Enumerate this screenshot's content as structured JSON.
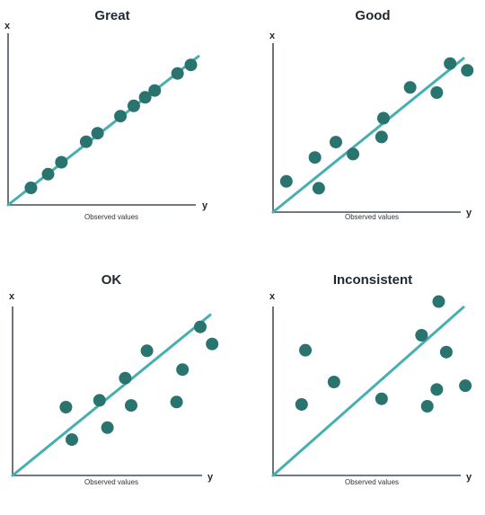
{
  "colors": {
    "point": "#2a7470",
    "fit_line": "#46b0b0",
    "axis": "#1f2933"
  },
  "chart_data": [
    {
      "type": "scatter",
      "title": "Great",
      "xlabel": "Observed values",
      "x_axis_letter": "y",
      "y_axis_letter": "x",
      "xlim": [
        0,
        1
      ],
      "ylim": [
        0,
        1
      ],
      "fit_line": [
        [
          0,
          0
        ],
        [
          1,
          0.87
        ]
      ],
      "grid": false,
      "points": [
        {
          "x": 0.12,
          "y": 0.1
        },
        {
          "x": 0.21,
          "y": 0.18
        },
        {
          "x": 0.28,
          "y": 0.25
        },
        {
          "x": 0.41,
          "y": 0.37
        },
        {
          "x": 0.47,
          "y": 0.42
        },
        {
          "x": 0.59,
          "y": 0.52
        },
        {
          "x": 0.66,
          "y": 0.58
        },
        {
          "x": 0.72,
          "y": 0.63
        },
        {
          "x": 0.77,
          "y": 0.67
        },
        {
          "x": 0.89,
          "y": 0.77
        },
        {
          "x": 0.96,
          "y": 0.82
        }
      ]
    },
    {
      "type": "scatter",
      "title": "Good",
      "xlabel": "Observed values",
      "x_axis_letter": "y",
      "y_axis_letter": "x",
      "xlim": [
        0,
        1
      ],
      "ylim": [
        0,
        1
      ],
      "fit_line": [
        [
          0,
          0
        ],
        [
          1,
          0.9
        ]
      ],
      "grid": false,
      "points": [
        {
          "x": 0.07,
          "y": 0.18
        },
        {
          "x": 0.22,
          "y": 0.32
        },
        {
          "x": 0.24,
          "y": 0.14
        },
        {
          "x": 0.33,
          "y": 0.41
        },
        {
          "x": 0.42,
          "y": 0.34
        },
        {
          "x": 0.57,
          "y": 0.44
        },
        {
          "x": 0.58,
          "y": 0.55
        },
        {
          "x": 0.72,
          "y": 0.73
        },
        {
          "x": 0.86,
          "y": 0.7
        },
        {
          "x": 0.93,
          "y": 0.87
        },
        {
          "x": 1.02,
          "y": 0.83
        }
      ]
    },
    {
      "type": "scatter",
      "title": "OK",
      "xlabel": "Observed values",
      "x_axis_letter": "y",
      "y_axis_letter": "x",
      "xlim": [
        0,
        1
      ],
      "ylim": [
        0,
        1
      ],
      "fit_line": [
        [
          0,
          0
        ],
        [
          1,
          0.94
        ]
      ],
      "grid": false,
      "points": [
        {
          "x": 0.27,
          "y": 0.4
        },
        {
          "x": 0.3,
          "y": 0.21
        },
        {
          "x": 0.44,
          "y": 0.44
        },
        {
          "x": 0.48,
          "y": 0.28
        },
        {
          "x": 0.57,
          "y": 0.57
        },
        {
          "x": 0.6,
          "y": 0.41
        },
        {
          "x": 0.68,
          "y": 0.73
        },
        {
          "x": 0.83,
          "y": 0.43
        },
        {
          "x": 0.86,
          "y": 0.62
        },
        {
          "x": 0.95,
          "y": 0.87
        },
        {
          "x": 1.01,
          "y": 0.77
        }
      ]
    },
    {
      "type": "scatter",
      "title": "Inconsistent",
      "xlabel": "Observed values",
      "x_axis_letter": "y",
      "y_axis_letter": "x",
      "xlim": [
        0,
        1
      ],
      "ylim": [
        0,
        1
      ],
      "fit_line": [
        [
          0,
          0
        ],
        [
          1,
          0.9
        ]
      ],
      "grid": false,
      "points": [
        {
          "x": 0.15,
          "y": 0.38
        },
        {
          "x": 0.17,
          "y": 0.67
        },
        {
          "x": 0.32,
          "y": 0.5
        },
        {
          "x": 0.57,
          "y": 0.41
        },
        {
          "x": 0.78,
          "y": 0.75
        },
        {
          "x": 0.81,
          "y": 0.37
        },
        {
          "x": 0.86,
          "y": 0.46
        },
        {
          "x": 0.87,
          "y": 0.93
        },
        {
          "x": 0.91,
          "y": 0.66
        },
        {
          "x": 1.01,
          "y": 0.48
        }
      ]
    }
  ]
}
